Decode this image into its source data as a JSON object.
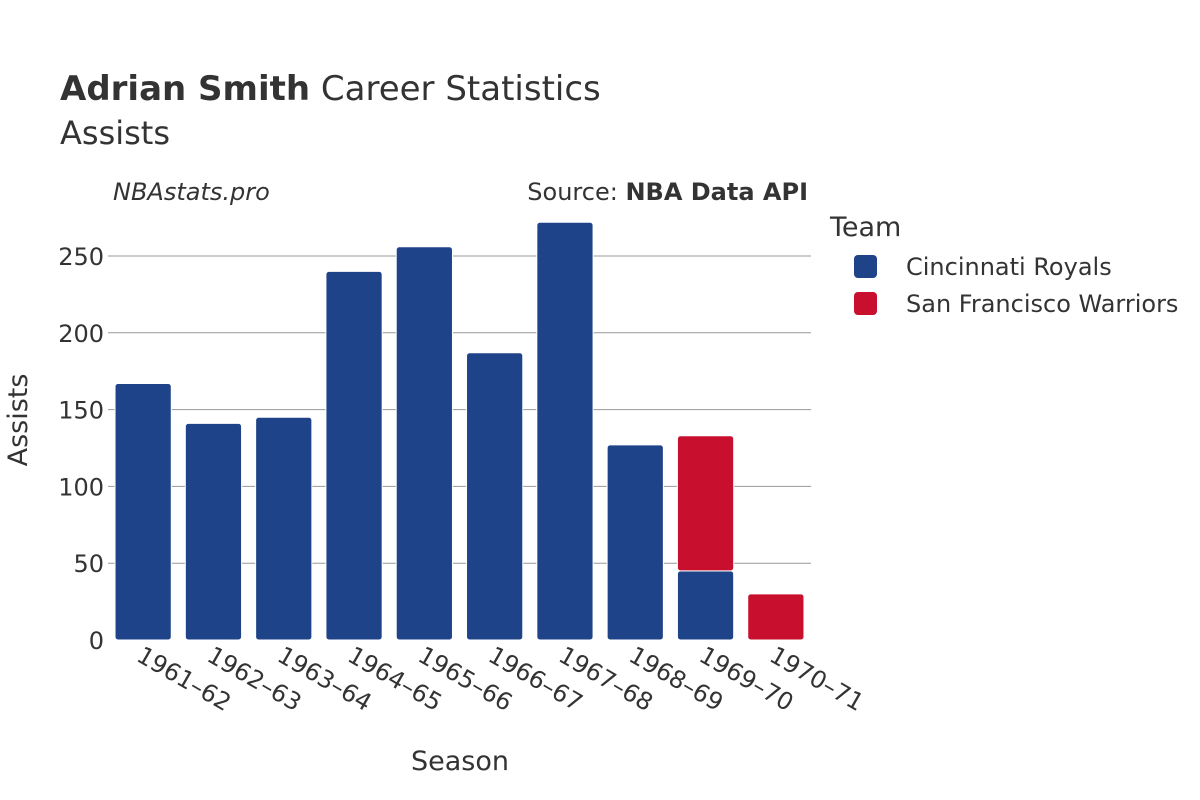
{
  "header": {
    "title_bold": "Adrian Smith",
    "title_rest": " Career Statistics",
    "subtitle": "Assists"
  },
  "annotations": {
    "site": "NBAstats.pro",
    "source_prefix": "Source: ",
    "source_name": "NBA Data API"
  },
  "legend": {
    "title": "Team"
  },
  "colors": {
    "Cincinnati Royals": "#1f4388",
    "San Francisco Warriors": "#c8102e",
    "grid": "#999999",
    "text": "#333333"
  },
  "chart_data": {
    "type": "bar",
    "stacked": true,
    "xlabel": "Season",
    "ylabel": "Assists",
    "ylim": [
      0,
      280
    ],
    "yticks": [
      0,
      50,
      100,
      150,
      200,
      250
    ],
    "grid": true,
    "legend_position": "right",
    "categories": [
      "1961–62",
      "1962–63",
      "1963–64",
      "1964–65",
      "1965–66",
      "1966–67",
      "1967–68",
      "1968–69",
      "1969–70",
      "1970–71"
    ],
    "series": [
      {
        "name": "Cincinnati Royals",
        "values": [
          167,
          141,
          145,
          240,
          256,
          187,
          272,
          127,
          45,
          0
        ]
      },
      {
        "name": "San Francisco Warriors",
        "values": [
          0,
          0,
          0,
          0,
          0,
          0,
          0,
          0,
          88,
          30
        ]
      }
    ]
  }
}
